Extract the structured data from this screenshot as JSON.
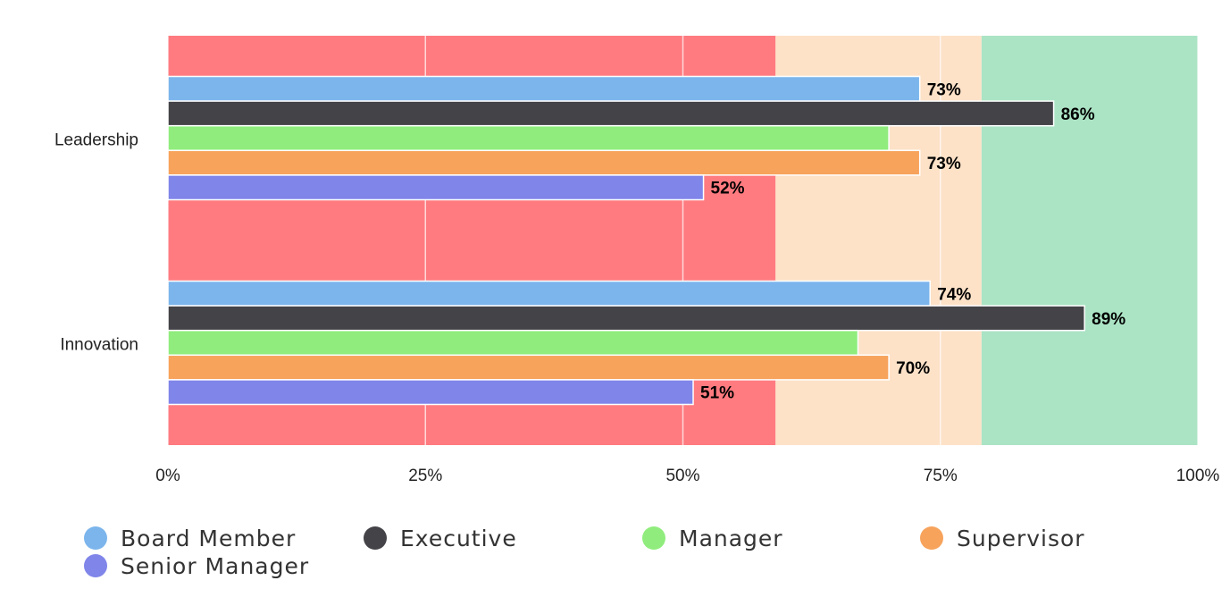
{
  "chart_data": {
    "type": "bar",
    "orientation": "horizontal",
    "categories": [
      "Leadership",
      "Innovation"
    ],
    "series": [
      {
        "name": "Board Member",
        "color": "#7cb5ec",
        "values": [
          73,
          74
        ],
        "value_labels": [
          "73%",
          "74%"
        ]
      },
      {
        "name": "Executive",
        "color": "#434348",
        "values": [
          86,
          89
        ],
        "value_labels": [
          "86%",
          "89%"
        ]
      },
      {
        "name": "Manager",
        "color": "#90ed7d",
        "values": [
          70,
          67
        ]
      },
      {
        "name": "Supervisor",
        "color": "#f7a35c",
        "values": [
          73,
          70
        ],
        "value_labels": [
          "73%",
          "70%"
        ]
      },
      {
        "name": "Senior Manager",
        "color": "#8085e9",
        "values": [
          52,
          51
        ],
        "value_labels": [
          "52%",
          "51%"
        ]
      }
    ],
    "xlim": [
      0,
      100
    ],
    "xticks": [
      {
        "value": 0,
        "label": "0%"
      },
      {
        "value": 25,
        "label": "25%"
      },
      {
        "value": 50,
        "label": "50%"
      },
      {
        "value": 75,
        "label": "75%"
      },
      {
        "value": 100,
        "label": "100%"
      }
    ],
    "bands": [
      {
        "from": 0,
        "to": 59,
        "color": "#ff7b80"
      },
      {
        "from": 59,
        "to": 79,
        "color": "#fde2c8"
      },
      {
        "from": 79,
        "to": 100,
        "color": "#abe4c5"
      }
    ],
    "grid": true,
    "legend": "bottom"
  }
}
